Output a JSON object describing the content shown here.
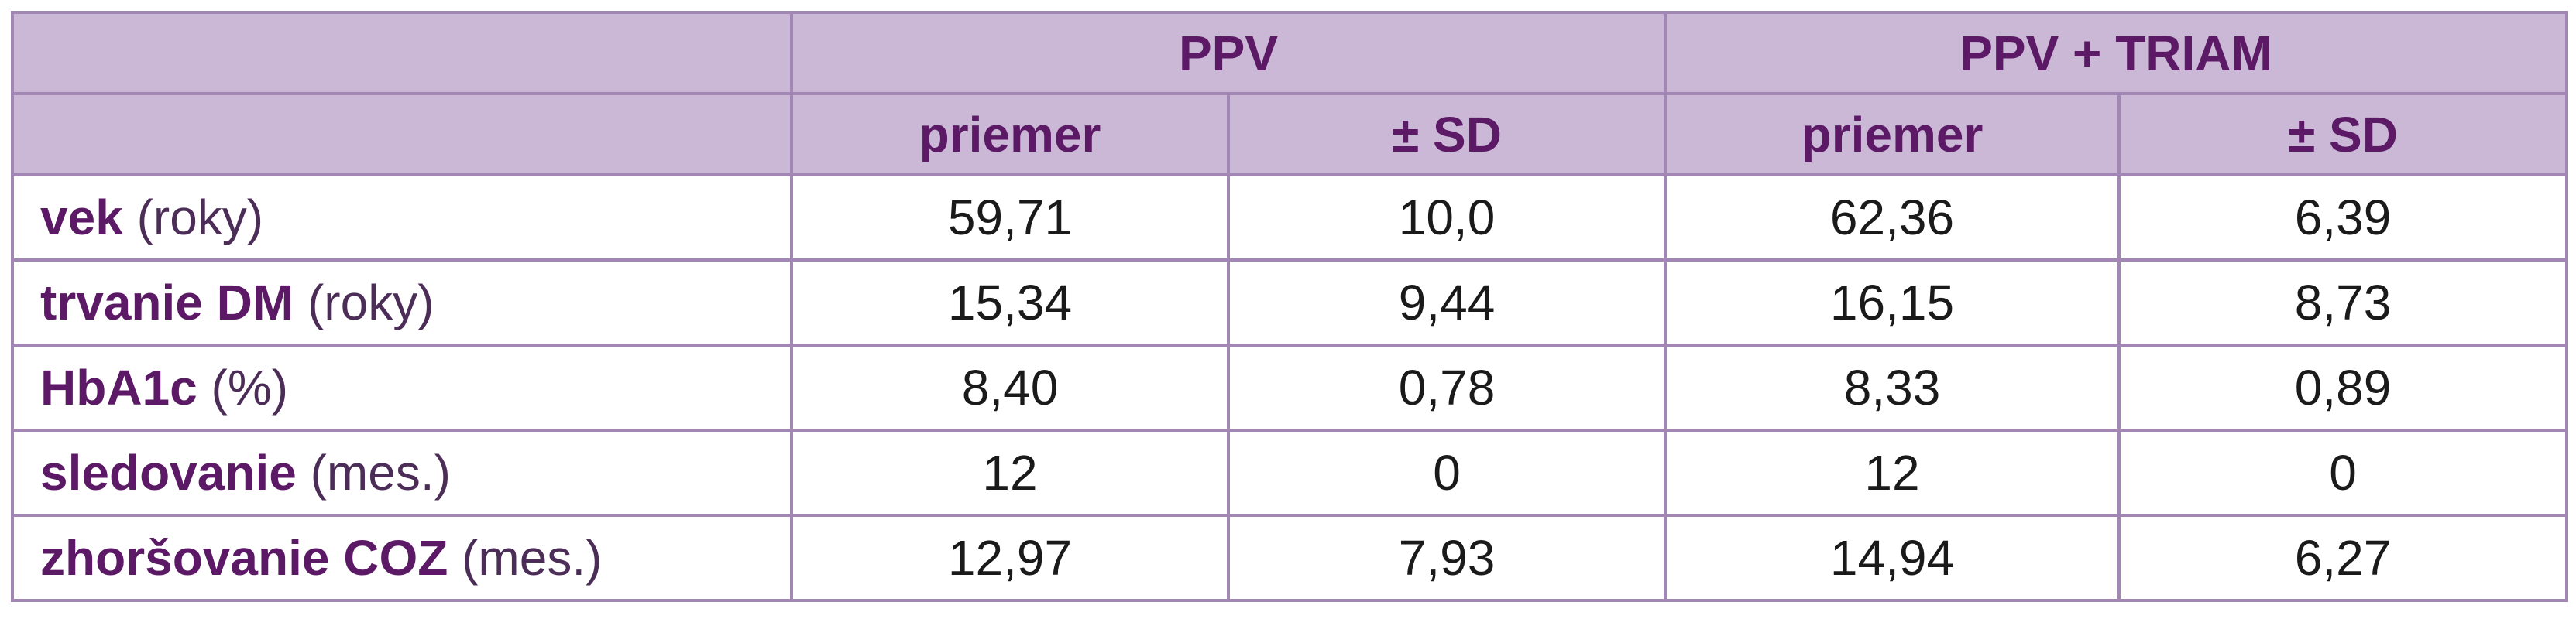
{
  "table": {
    "groups": [
      "PPV",
      "PPV + TRIAM"
    ],
    "subheaders": [
      "priemer",
      "± SD",
      "priemer",
      "± SD"
    ],
    "rows": [
      {
        "label": "vek",
        "unit": "(roky)",
        "values": [
          "59,71",
          "10,0",
          "62,36",
          "6,39"
        ]
      },
      {
        "label": "trvanie DM",
        "unit": "(roky)",
        "values": [
          "15,34",
          "9,44",
          "16,15",
          "8,73"
        ]
      },
      {
        "label": "HbA1c",
        "unit": "(%)",
        "values": [
          "8,40",
          "0,78",
          "8,33",
          "0,89"
        ]
      },
      {
        "label": "sledovanie",
        "unit": "(mes.)",
        "values": [
          "12",
          "0",
          "12",
          "0"
        ]
      },
      {
        "label": "zhoršovanie COZ",
        "unit": "(mes.)",
        "values": [
          "12,97",
          "7,93",
          "14,94",
          "6,27"
        ]
      }
    ]
  }
}
